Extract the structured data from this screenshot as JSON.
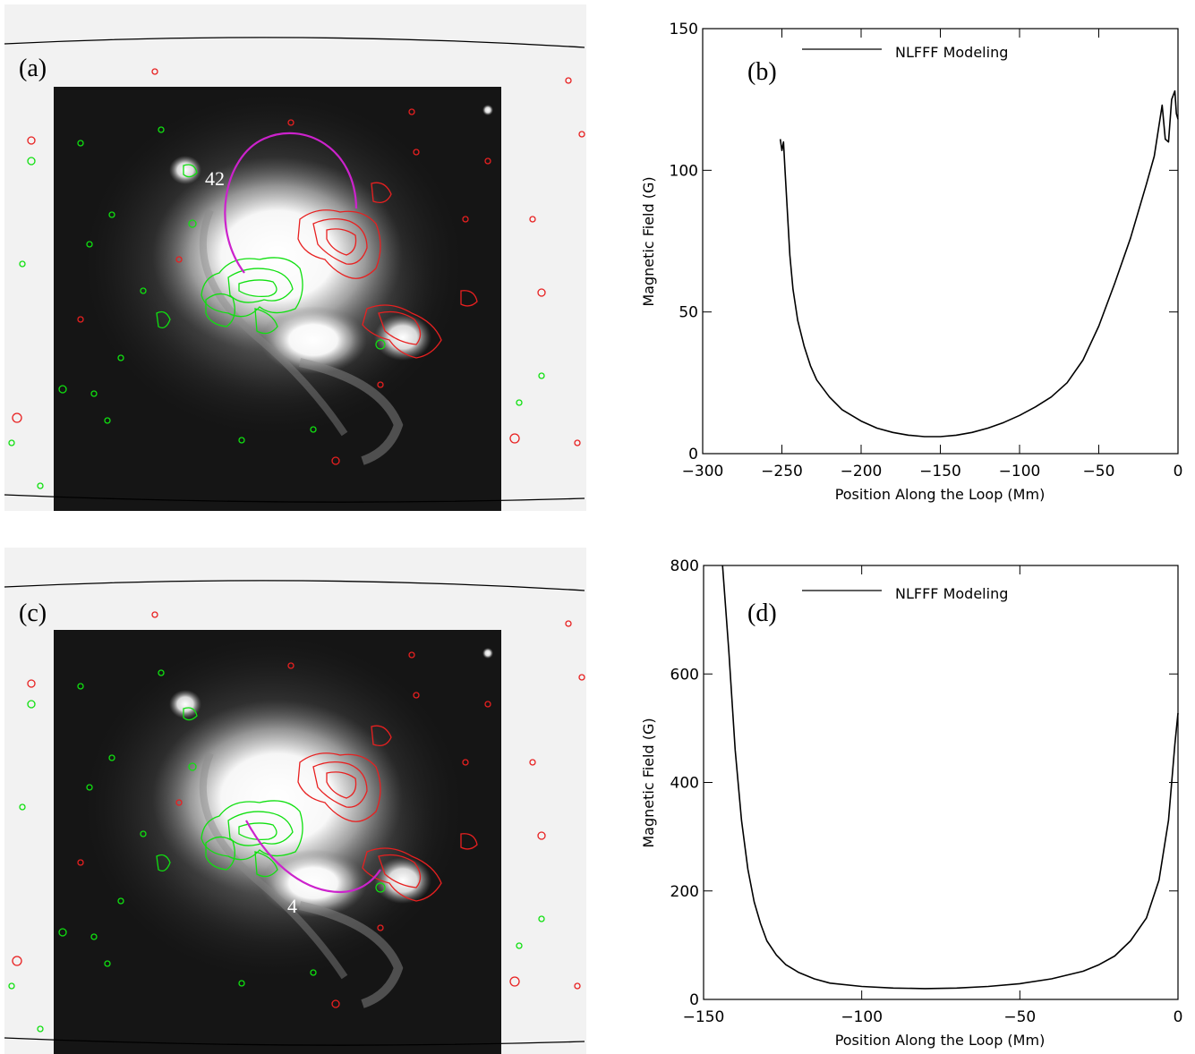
{
  "panels": [
    {
      "id": "a",
      "label": "(a)",
      "loop_number": "42",
      "loop_side": "left"
    },
    {
      "id": "c",
      "label": "(c)",
      "loop_number": "4",
      "loop_side": "bottom"
    }
  ],
  "colors": {
    "positive_contour": "#e82020",
    "negative_contour": "#10e010",
    "loop": "#cc22cc",
    "background_field": "#f2f2f2",
    "curve": "#000000"
  },
  "chart_data": [
    {
      "panel_label": "(b)",
      "type": "line",
      "xlabel": "Position Along the Loop (Mm)",
      "ylabel": "Magnetic Field (G)",
      "xlim": [
        -300,
        0
      ],
      "ylim": [
        0,
        150
      ],
      "xticks": [
        -300,
        -250,
        -200,
        -150,
        -100,
        -50,
        0
      ],
      "yticks": [
        0,
        50,
        100,
        150
      ],
      "legend_position": "top-left",
      "series": [
        {
          "name": "NLFFF Modeling",
          "x": [
            -251,
            -250,
            -249,
            -248,
            -247,
            -246,
            -245,
            -243,
            -240,
            -236,
            -232,
            -228,
            -220,
            -212,
            -200,
            -190,
            -180,
            -170,
            -160,
            -150,
            -140,
            -130,
            -120,
            -110,
            -100,
            -90,
            -80,
            -70,
            -60,
            -50,
            -40,
            -30,
            -20,
            -15,
            -10,
            -8,
            -6,
            -4,
            -2,
            -1,
            0
          ],
          "y": [
            111,
            107,
            110,
            100,
            90,
            80,
            70,
            58,
            47,
            38,
            31,
            26,
            20,
            15.5,
            11.5,
            9,
            7.5,
            6.5,
            6,
            6,
            6.5,
            7.5,
            9,
            11,
            13.5,
            16.5,
            20,
            25,
            33,
            45,
            60,
            76,
            95,
            105,
            123,
            111,
            110,
            125,
            128,
            120,
            118
          ]
        }
      ]
    },
    {
      "panel_label": "(d)",
      "type": "line",
      "xlabel": "Position Along the Loop (Mm)",
      "ylabel": "Magnetic Field (G)",
      "xlim": [
        -150,
        0
      ],
      "ylim": [
        0,
        800
      ],
      "xticks": [
        -150,
        -100,
        -50,
        0
      ],
      "yticks": [
        0,
        200,
        400,
        600,
        800
      ],
      "legend_position": "top-left",
      "series": [
        {
          "name": "NLFFF Modeling",
          "x": [
            -144,
            -142,
            -140,
            -138,
            -136,
            -134,
            -132,
            -130,
            -127,
            -124,
            -120,
            -115,
            -110,
            -100,
            -90,
            -80,
            -70,
            -60,
            -50,
            -40,
            -30,
            -25,
            -20,
            -15,
            -10,
            -6,
            -3,
            -1,
            0
          ],
          "y": [
            800,
            640,
            460,
            330,
            240,
            180,
            140,
            108,
            82,
            64,
            50,
            38,
            30,
            24,
            21,
            20,
            21,
            24,
            29,
            38,
            52,
            64,
            80,
            108,
            150,
            220,
            330,
            470,
            528
          ]
        }
      ]
    }
  ]
}
